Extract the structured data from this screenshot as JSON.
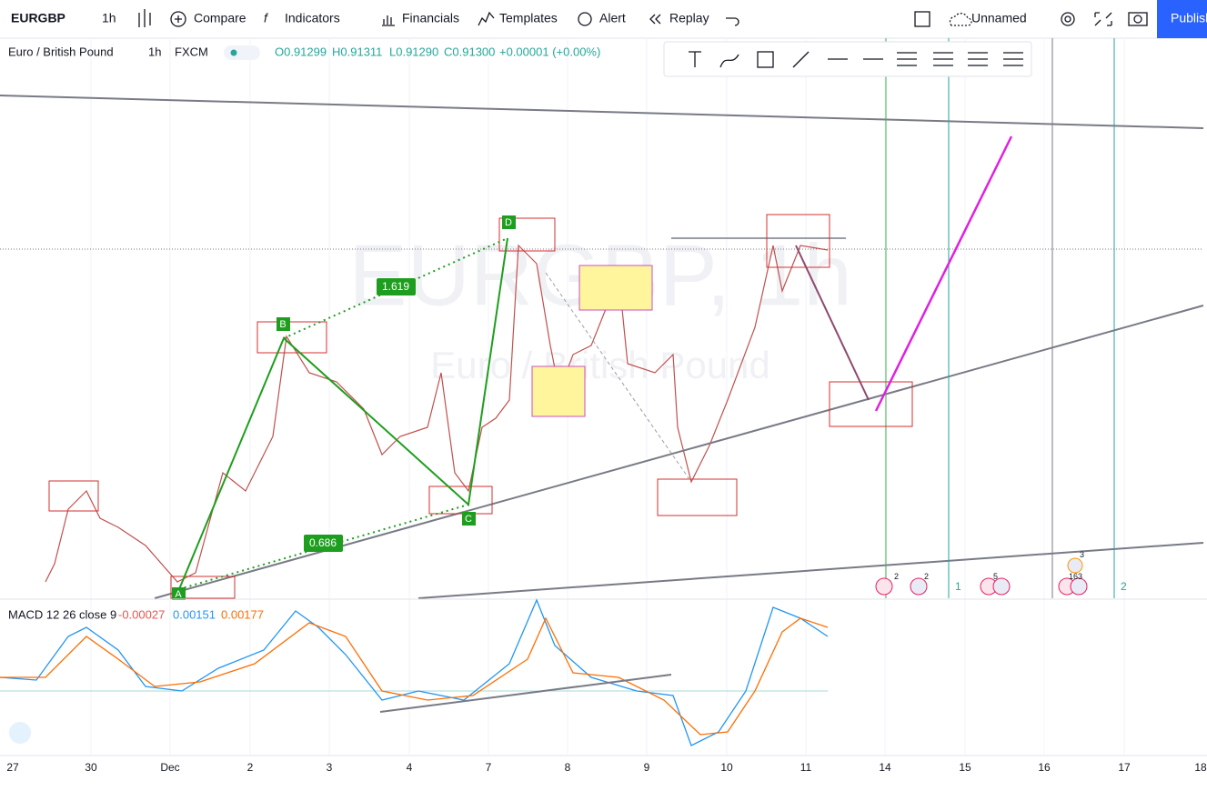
{
  "toolbar": {
    "symbol": "EURGBP",
    "interval": "1h",
    "items": [
      "Compare",
      "Indicators",
      "Financials",
      "Templates",
      "Alert",
      "Replay"
    ],
    "layout": "Unnamed",
    "publish": "Publish"
  },
  "legend": {
    "name": "Euro / British Pound",
    "interval": "1h",
    "source": "FXCM",
    "open": "O0.91299",
    "high": "H0.91311",
    "low": "L0.91290",
    "close": "C0.91300",
    "change": "+0.00001 (+0.00%)"
  },
  "watermark": {
    "symbol": "EURGBP, 1h",
    "name": "Euro / British Pound"
  },
  "pattern": {
    "points": [
      "A",
      "B",
      "C",
      "D"
    ],
    "ratios": [
      "1.619",
      "0.686"
    ]
  },
  "macd": {
    "title": "MACD 12 26 close 9",
    "histogram": "-0.00027",
    "macd": "0.00151",
    "signal": "0.00177"
  },
  "x_axis": [
    "27",
    "30",
    "Dec",
    "2",
    "3",
    "4",
    "7",
    "8",
    "9",
    "10",
    "11",
    "14",
    "15",
    "16",
    "17",
    "18"
  ],
  "events": [
    "2",
    "2",
    "5",
    "3",
    "163",
    "1",
    "2"
  ]
}
